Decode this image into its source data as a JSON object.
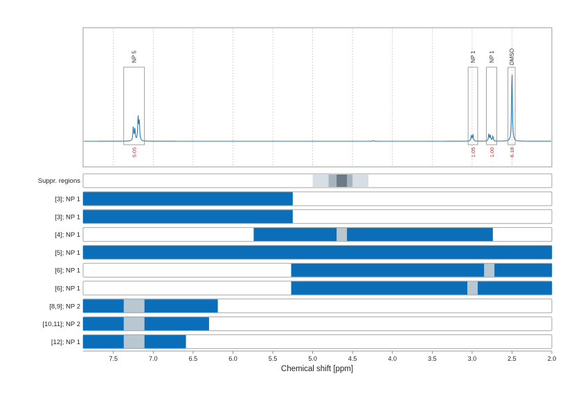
{
  "chart_data": {
    "type": "line",
    "xlabel": "Chemical shift [ppm]",
    "xlim": [
      7.88,
      2.0
    ],
    "x_ticks": [
      "7.5",
      "7.0",
      "6.5",
      "6.0",
      "5.5",
      "5.0",
      "4.5",
      "4.0",
      "3.5",
      "3.0",
      "2.5",
      "2.0"
    ],
    "x_tick_values": [
      7.5,
      7.0,
      6.5,
      6.0,
      5.5,
      5.0,
      4.5,
      4.0,
      3.5,
      3.0,
      2.5,
      2.0
    ],
    "grid": true,
    "spectrum": {
      "baseline": 0,
      "peaks": [
        {
          "x": 7.25,
          "h": 0.2
        },
        {
          "x": 7.23,
          "h": 0.16
        },
        {
          "x": 7.19,
          "h": 0.33
        },
        {
          "x": 7.175,
          "h": 0.26
        },
        {
          "x": 3.01,
          "h": 0.08
        },
        {
          "x": 2.99,
          "h": 0.09
        },
        {
          "x": 2.79,
          "h": 0.1
        },
        {
          "x": 2.77,
          "h": 0.08
        },
        {
          "x": 2.74,
          "h": 0.07
        },
        {
          "x": 4.24,
          "h": 0.01
        },
        {
          "x": 2.5,
          "h": 0.98
        }
      ]
    },
    "integrals": [
      {
        "label": "NP 5",
        "from": 7.37,
        "to": 7.11,
        "value": "5.05"
      },
      {
        "label": "NP 1",
        "from": 3.05,
        "to": 2.93,
        "value": "1.05"
      },
      {
        "label": "NP 1",
        "from": 2.82,
        "to": 2.69,
        "value": "1.00"
      },
      {
        "label": "DMSO",
        "from": 2.55,
        "to": 2.46,
        "value": "6.18"
      }
    ],
    "suppression": {
      "label": "Suppr. regions",
      "regions": [
        {
          "from": 5.0,
          "to": 4.3,
          "level": 1
        },
        {
          "from": 4.8,
          "to": 4.5,
          "level": 2
        },
        {
          "from": 4.7,
          "to": 4.57,
          "level": 3
        }
      ]
    },
    "tracks": [
      {
        "label": "[3]; NP 1",
        "bars": [
          [
            7.88,
            5.25
          ]
        ],
        "gaps": []
      },
      {
        "label": "[3]; NP 1",
        "bars": [
          [
            7.88,
            5.25
          ]
        ],
        "gaps": []
      },
      {
        "label": "[4]; NP 1",
        "bars": [
          [
            5.74,
            2.74
          ]
        ],
        "gaps": [
          [
            4.7,
            4.57
          ]
        ]
      },
      {
        "label": "[5]; NP 1",
        "bars": [
          [
            7.88,
            2.0
          ]
        ],
        "gaps": []
      },
      {
        "label": "[6]; NP 1",
        "bars": [
          [
            5.27,
            2.0
          ]
        ],
        "gaps": [
          [
            2.85,
            2.72
          ]
        ]
      },
      {
        "label": "[6]; NP 1",
        "bars": [
          [
            5.27,
            2.0
          ]
        ],
        "gaps": [
          [
            3.06,
            2.93
          ]
        ]
      },
      {
        "label": "[8,9]; NP 2",
        "bars": [
          [
            7.88,
            6.19
          ]
        ],
        "gaps": [
          [
            7.37,
            7.11
          ]
        ]
      },
      {
        "label": "[10,11]; NP 2",
        "bars": [
          [
            7.88,
            6.3
          ]
        ],
        "gaps": [
          [
            7.37,
            7.11
          ]
        ]
      },
      {
        "label": "[12]; NP 1",
        "bars": [
          [
            7.88,
            6.59
          ]
        ],
        "gaps": [
          [
            7.37,
            7.11
          ]
        ]
      }
    ],
    "colors": {
      "spectrum": "#2a7ab0",
      "bar": "#0a6fb8",
      "gap": "#b8c7d0",
      "supp1": "#d7dfe5",
      "supp2": "#a5b4bf",
      "supp3": "#6c7b86",
      "integral": "#e02020",
      "box": "#888888"
    }
  }
}
